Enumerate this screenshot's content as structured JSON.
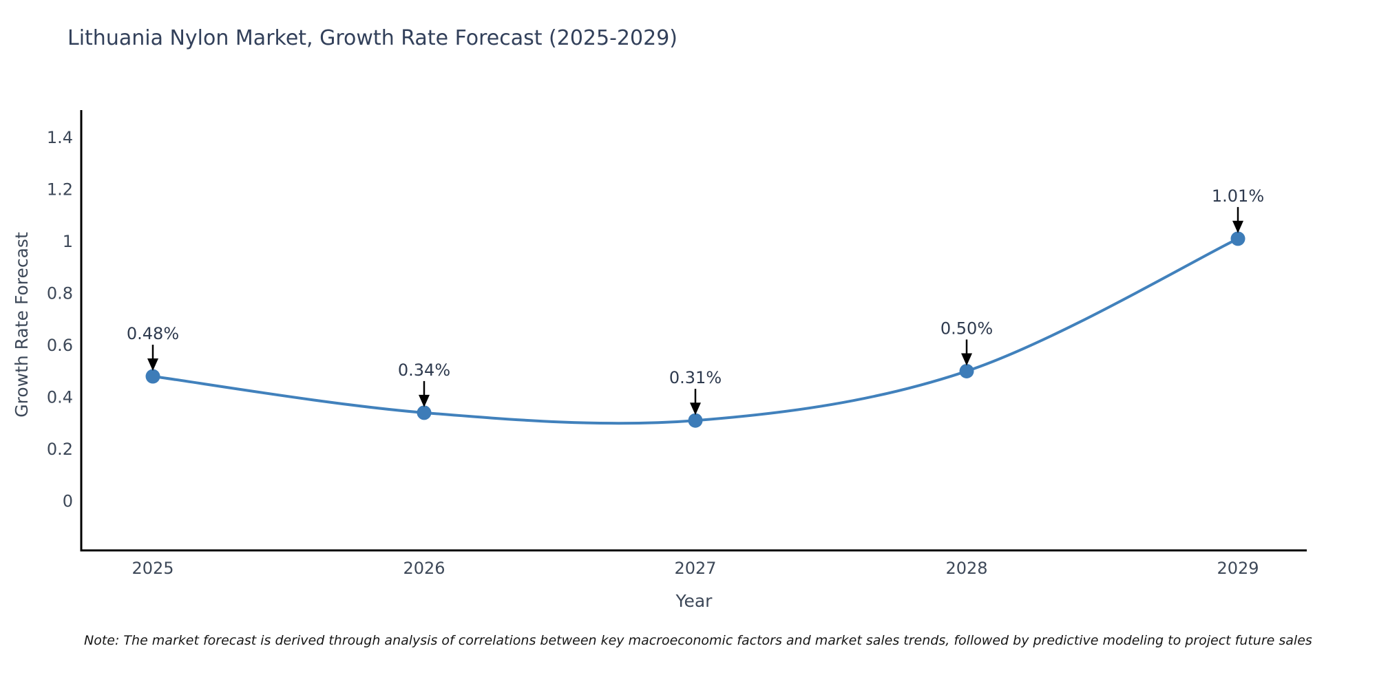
{
  "note": "Note: The market forecast is derived through analysis of correlations between key macroeconomic factors and market sales trends, followed by predictive modeling to project future sales",
  "chart_data": {
    "type": "line",
    "title": "Lithuania Nylon Market, Growth Rate Forecast (2025-2029)",
    "xlabel": "Year",
    "ylabel": "Growth Rate Forecast",
    "x": [
      2025,
      2026,
      2027,
      2028,
      2029
    ],
    "x_tick_labels": [
      "2025",
      "2026",
      "2027",
      "2028",
      "2029"
    ],
    "series": [
      {
        "name": "Growth Rate Forecast",
        "values": [
          0.48,
          0.34,
          0.31,
          0.5,
          1.01
        ]
      }
    ],
    "point_labels": [
      "0.48%",
      "0.34%",
      "0.31%",
      "0.50%",
      "1.01%"
    ],
    "y_ticks": [
      0,
      0.2,
      0.4,
      0.6,
      0.8,
      1,
      1.2,
      1.4
    ],
    "y_tick_labels": [
      "0",
      "0.2",
      "0.4",
      "0.6",
      "0.8",
      "1",
      "1.2",
      "1.4"
    ],
    "ylim": [
      -0.19,
      1.505
    ],
    "grid": false,
    "legend_position": "none",
    "annotations": "value label with downward black arrow above each data point",
    "colors": {
      "line": "#4181bc",
      "marker": "#3d7cb8",
      "axis": "#000000",
      "tick_text": "#3d4858",
      "title_text": "#32405a",
      "annotation_text": "#2e3a4e",
      "arrow": "#000000",
      "note_text": "#161616",
      "background": "#ffffff"
    }
  }
}
